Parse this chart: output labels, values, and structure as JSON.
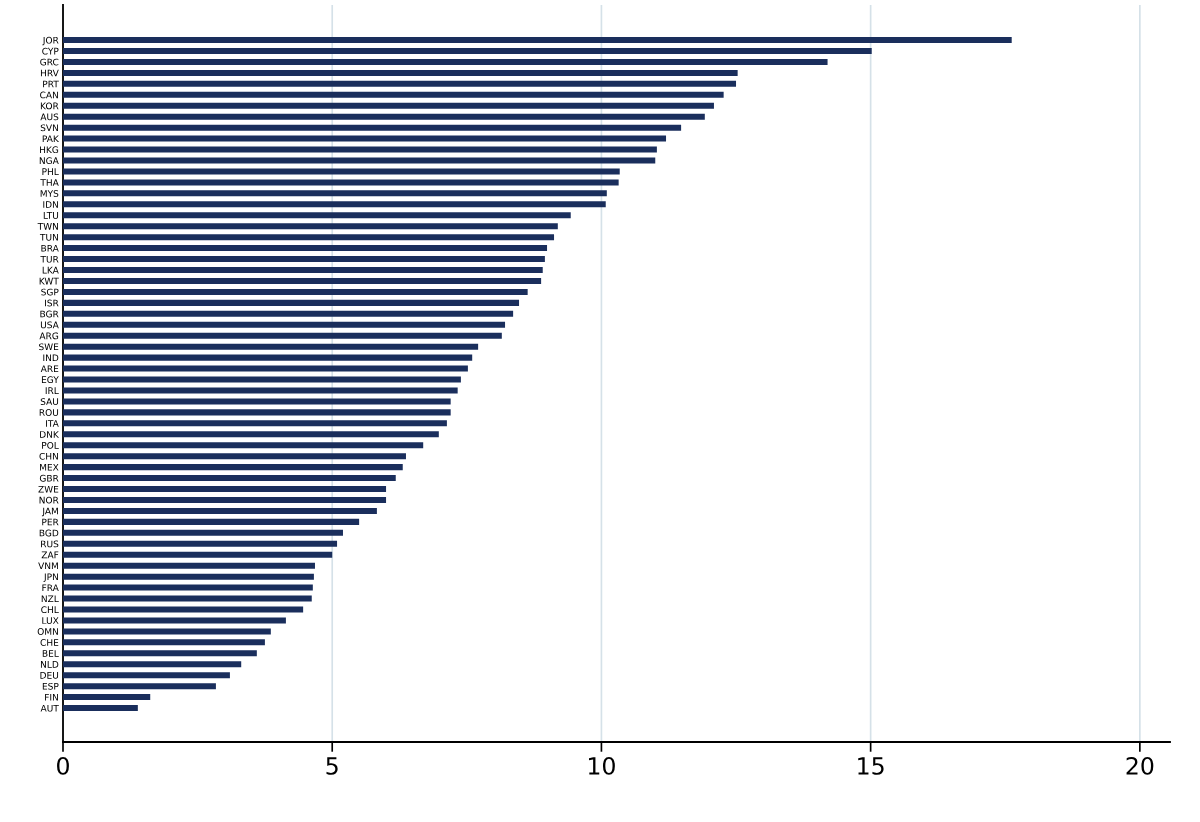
{
  "chart_data": {
    "type": "bar",
    "orientation": "horizontal",
    "color": "#1a2e5c",
    "categories": [
      "JOR",
      "CYP",
      "GRC",
      "HRV",
      "PRT",
      "CAN",
      "KOR",
      "AUS",
      "SVN",
      "PAK",
      "HKG",
      "NGA",
      "PHL",
      "THA",
      "MYS",
      "IDN",
      "LTU",
      "TWN",
      "TUN",
      "BRA",
      "TUR",
      "LKA",
      "KWT",
      "SGP",
      "ISR",
      "BGR",
      "USA",
      "ARG",
      "SWE",
      "IND",
      "ARE",
      "EGY",
      "IRL",
      "SAU",
      "ROU",
      "ITA",
      "DNK",
      "POL",
      "CHN",
      "MEX",
      "GBR",
      "ZWE",
      "NOR",
      "JAM",
      "PER",
      "BGD",
      "RUS",
      "ZAF",
      "VNM",
      "JPN",
      "FRA",
      "NZL",
      "CHL",
      "LUX",
      "OMN",
      "CHE",
      "BEL",
      "NLD",
      "DEU",
      "ESP",
      "FIN",
      "AUT"
    ],
    "values": [
      17.62,
      15.02,
      14.2,
      12.53,
      12.5,
      12.27,
      12.09,
      11.92,
      11.48,
      11.2,
      11.03,
      11.0,
      10.34,
      10.32,
      10.1,
      10.08,
      9.43,
      9.19,
      9.12,
      8.99,
      8.95,
      8.91,
      8.88,
      8.63,
      8.47,
      8.36,
      8.21,
      8.15,
      7.71,
      7.6,
      7.52,
      7.39,
      7.33,
      7.2,
      7.2,
      7.13,
      6.98,
      6.69,
      6.37,
      6.31,
      6.18,
      6.0,
      6.0,
      5.83,
      5.5,
      5.2,
      5.09,
      5.0,
      4.68,
      4.66,
      4.64,
      4.62,
      4.46,
      4.14,
      3.86,
      3.75,
      3.6,
      3.31,
      3.1,
      2.84,
      1.62,
      1.39
    ],
    "xlim": [
      0,
      20.56
    ],
    "xticks": [
      0,
      5,
      10,
      15,
      20
    ],
    "grid": "x"
  }
}
